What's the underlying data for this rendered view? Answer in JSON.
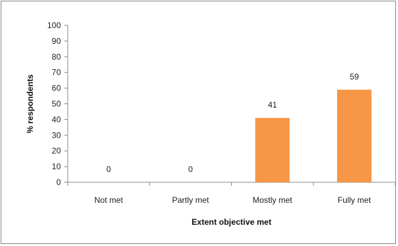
{
  "chart_data": {
    "type": "bar",
    "categories": [
      "Not met",
      "Partly met",
      "Mostly met",
      "Fully met"
    ],
    "values": [
      0,
      0,
      41,
      59
    ],
    "data_labels": [
      "0",
      "0",
      "41",
      "59"
    ],
    "xlabel": "Extent objective met",
    "ylabel": "% respondents",
    "ylim": [
      0,
      100
    ],
    "yticks": [
      "0",
      "10",
      "20",
      "30",
      "40",
      "50",
      "60",
      "70",
      "80",
      "90",
      "100"
    ],
    "grid": false,
    "legend": "none",
    "bar_color": "#F79646"
  }
}
